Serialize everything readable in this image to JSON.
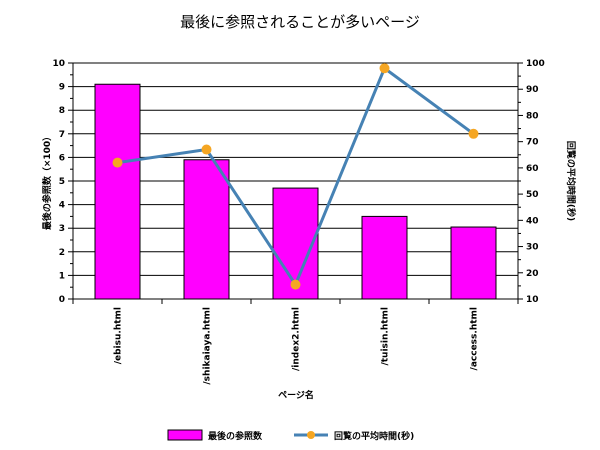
{
  "chart_data": {
    "type": "bar+line",
    "title": "最後に参照されることが多いページ",
    "xlabel": "ページ名",
    "ylabel_left": "最後の参照数（×100）",
    "ylabel_right": "回覧の平均時間(秒)",
    "categories": [
      "/ebisu.html",
      "/shikaiaya.html",
      "/index2.html",
      "/tuisin.html",
      "/access.html"
    ],
    "y_left_lim": [
      0,
      10
    ],
    "y_left_ticks": [
      "0",
      "1",
      "2",
      "3",
      "4",
      "5",
      "6",
      "7",
      "8",
      "9",
      "10"
    ],
    "y_right_lim": [
      10,
      100
    ],
    "y_right_ticks": [
      "10",
      "20",
      "30",
      "40",
      "50",
      "60",
      "70",
      "80",
      "90",
      "100"
    ],
    "grid": true,
    "legend_position": "bottom",
    "series": [
      {
        "name": "最後の参照数",
        "type": "bar",
        "axis": "left",
        "color": "#ff00ff",
        "values": [
          9.1,
          5.9,
          4.7,
          3.5,
          3.05
        ]
      },
      {
        "name": "回覧の平均時間(秒)",
        "type": "line",
        "axis": "right",
        "color": "#4682b4",
        "marker_color": "#f5a623",
        "values": [
          62,
          67,
          15.5,
          98,
          73
        ]
      }
    ]
  }
}
